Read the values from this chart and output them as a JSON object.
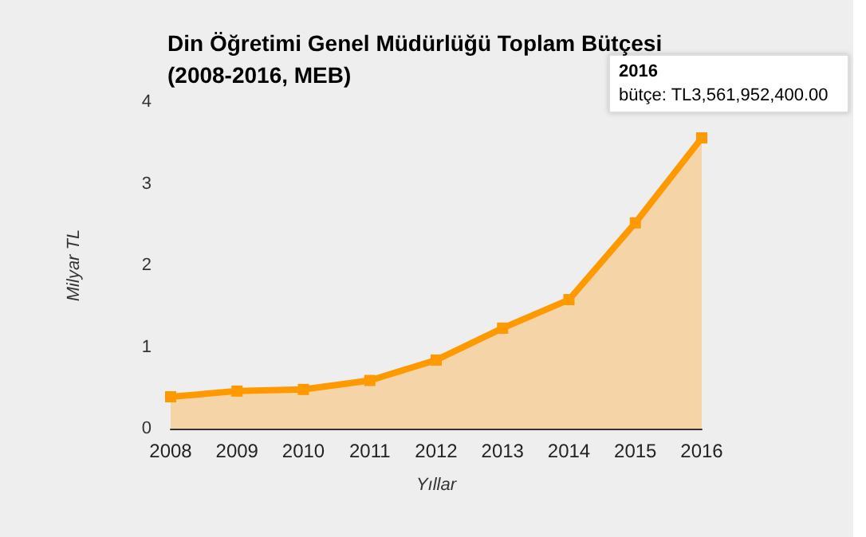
{
  "chart_data": {
    "type": "area",
    "title": "Din Öğretimi Genel Müdürlüğü Toplam Bütçesi\n(2008-2016, MEB)",
    "xlabel": "Yıllar",
    "ylabel": "Milyar TL",
    "categories": [
      "2008",
      "2009",
      "2010",
      "2011",
      "2012",
      "2013",
      "2014",
      "2015",
      "2016"
    ],
    "series": [
      {
        "color": "#ff9900",
        "values": [
          0.39,
          0.46,
          0.48,
          0.59,
          0.84,
          1.23,
          1.58,
          2.52,
          3.56
        ]
      }
    ],
    "ylim": [
      0,
      4
    ],
    "yticks": [
      0,
      1,
      2,
      3,
      4
    ],
    "grid": false,
    "marker": "square",
    "annotations": [
      {
        "text": "2016\nbütçe: TL3,561,952,400.00",
        "x": "2016",
        "y": 3.56
      }
    ]
  }
}
